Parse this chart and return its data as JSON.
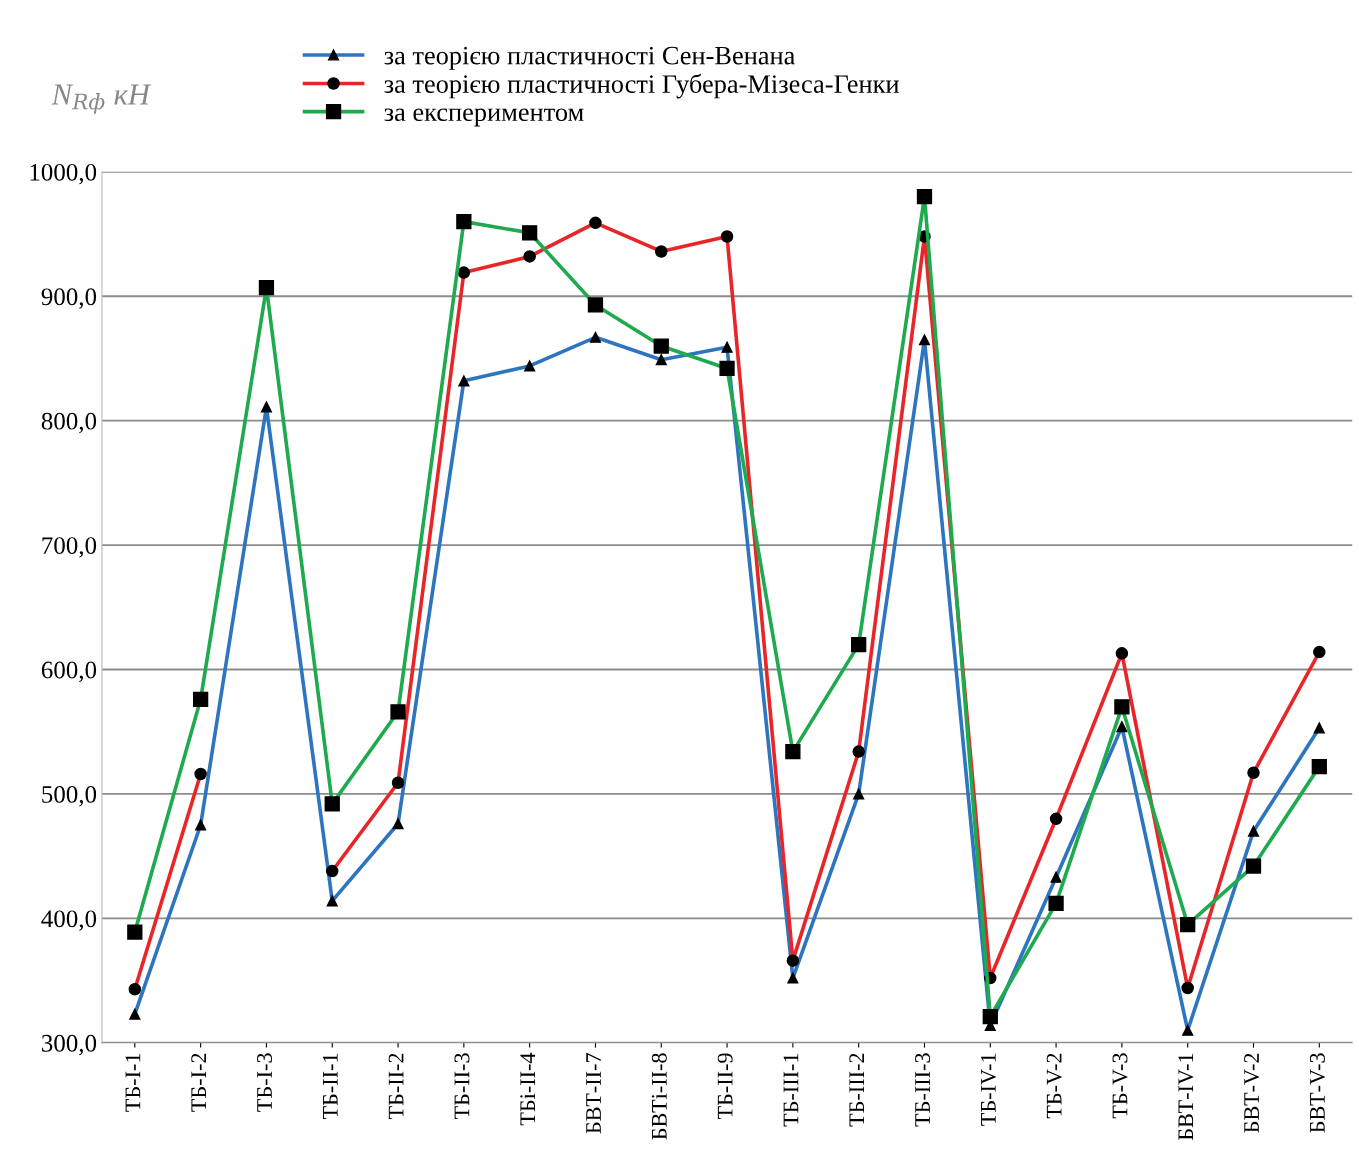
{
  "chart_data": {
    "type": "line",
    "ylabel": "N$_{Rф}$ кН",
    "categories": [
      "ТБ-І-1",
      "ТБ-І-2",
      "ТБ-І-3",
      "ТБ-ІІ-1",
      "ТБ-ІІ-2",
      "ТБ-ІІ-3",
      "ТБі-ІІ-4",
      "БВТ-ІІ-7",
      "БВТі-ІІ-8",
      "ТБ-ІІ-9",
      "ТБ-ІІІ-1",
      "ТБ-ІІІ-2",
      "ТБ-ІІІ-3",
      "ТБ-IV-1",
      "ТБ-V-2",
      "ТБ-V-3",
      "БВТ-IV-1",
      "БВТ-V-2",
      "БВТ-V-3"
    ],
    "series": [
      {
        "name": "за теорією пластичності Сен-Венана",
        "color": "#2e75c0",
        "marker": "triangle",
        "values": [
          323,
          475,
          811,
          414,
          476,
          832,
          844,
          867,
          849,
          859,
          352,
          500,
          865,
          314,
          433,
          554,
          310,
          470,
          553
        ]
      },
      {
        "name": "за теорією пластичності Губера-Мізеса-Генки",
        "color": "#e8262a",
        "marker": "circle",
        "values": [
          343,
          516,
          null,
          438,
          509,
          919,
          932,
          959,
          936,
          948,
          366,
          534,
          948,
          352,
          480,
          613,
          344,
          517,
          614
        ]
      },
      {
        "name": "за експериментом",
        "color": "#1faa4f",
        "marker": "square",
        "values": [
          389,
          576,
          907,
          492,
          566,
          960,
          951,
          893,
          860,
          842,
          534,
          620,
          980,
          321,
          412,
          570,
          395,
          442,
          522
        ]
      }
    ],
    "ylim": [
      300,
      1000
    ],
    "yticks": [
      {
        "value": 300,
        "label": "300,0"
      },
      {
        "value": 400,
        "label": "400,0"
      },
      {
        "value": 500,
        "label": "500,0"
      },
      {
        "value": 600,
        "label": "600,0"
      },
      {
        "value": 700,
        "label": "700,0"
      },
      {
        "value": 800,
        "label": "800,0"
      },
      {
        "value": 900,
        "label": "900,0"
      },
      {
        "value": 1000,
        "label": "1000,0"
      }
    ],
    "grid": "y",
    "legend": "top",
    "line_style": "solid"
  }
}
